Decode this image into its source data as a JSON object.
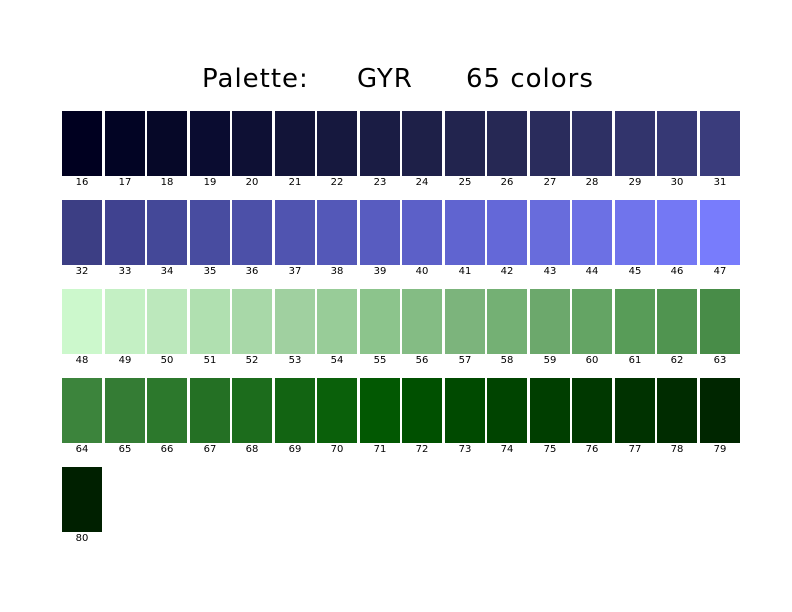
{
  "title": {
    "label": "Palette:",
    "name": "GYR",
    "count": "65 colors"
  },
  "palette": [
    {
      "index": "16",
      "color": "#000020"
    },
    {
      "index": "17",
      "color": "#020424"
    },
    {
      "index": "18",
      "color": "#060828"
    },
    {
      "index": "19",
      "color": "#0a0c30"
    },
    {
      "index": "20",
      "color": "#0e1034"
    },
    {
      "index": "21",
      "color": "#121438"
    },
    {
      "index": "22",
      "color": "#16183e"
    },
    {
      "index": "23",
      "color": "#1a1c44"
    },
    {
      "index": "24",
      "color": "#1e2048"
    },
    {
      "index": "25",
      "color": "#22244e"
    },
    {
      "index": "26",
      "color": "#262854"
    },
    {
      "index": "27",
      "color": "#2a2c5c"
    },
    {
      "index": "28",
      "color": "#2e3064"
    },
    {
      "index": "29",
      "color": "#32346c"
    },
    {
      "index": "30",
      "color": "#363874"
    },
    {
      "index": "31",
      "color": "#3a3c7c"
    },
    {
      "index": "32",
      "color": "#3c3e84"
    },
    {
      "index": "33",
      "color": "#404290"
    },
    {
      "index": "34",
      "color": "#444898"
    },
    {
      "index": "35",
      "color": "#484ca0"
    },
    {
      "index": "36",
      "color": "#4c50a8"
    },
    {
      "index": "37",
      "color": "#5054b0"
    },
    {
      "index": "38",
      "color": "#5458b8"
    },
    {
      "index": "39",
      "color": "#585cc0"
    },
    {
      "index": "40",
      "color": "#5c60c8"
    },
    {
      "index": "41",
      "color": "#6064d0"
    },
    {
      "index": "42",
      "color": "#6468d8"
    },
    {
      "index": "43",
      "color": "#686cdc"
    },
    {
      "index": "44",
      "color": "#6c70e4"
    },
    {
      "index": "45",
      "color": "#7074ec"
    },
    {
      "index": "46",
      "color": "#7478f4"
    },
    {
      "index": "47",
      "color": "#787cfc"
    },
    {
      "index": "48",
      "color": "#ccf8cc"
    },
    {
      "index": "49",
      "color": "#c4f0c4"
    },
    {
      "index": "50",
      "color": "#bce8bc"
    },
    {
      "index": "51",
      "color": "#b0e0b0"
    },
    {
      "index": "52",
      "color": "#a8d8a8"
    },
    {
      "index": "53",
      "color": "#a0d0a0"
    },
    {
      "index": "54",
      "color": "#98cc98"
    },
    {
      "index": "55",
      "color": "#8cc48c"
    },
    {
      "index": "56",
      "color": "#84bc84"
    },
    {
      "index": "57",
      "color": "#7cb47c"
    },
    {
      "index": "58",
      "color": "#74b074"
    },
    {
      "index": "59",
      "color": "#6ca86c"
    },
    {
      "index": "60",
      "color": "#64a464"
    },
    {
      "index": "61",
      "color": "#589c58"
    },
    {
      "index": "62",
      "color": "#509450"
    },
    {
      "index": "63",
      "color": "#488c48"
    },
    {
      "index": "64",
      "color": "#3c843c"
    },
    {
      "index": "65",
      "color": "#347c34"
    },
    {
      "index": "66",
      "color": "#2c782c"
    },
    {
      "index": "67",
      "color": "#247024"
    },
    {
      "index": "68",
      "color": "#1c6c1c"
    },
    {
      "index": "69",
      "color": "#126412"
    },
    {
      "index": "70",
      "color": "#0a600a"
    },
    {
      "index": "71",
      "color": "#025802"
    },
    {
      "index": "72",
      "color": "#005000"
    },
    {
      "index": "73",
      "color": "#004a00"
    },
    {
      "index": "74",
      "color": "#004400"
    },
    {
      "index": "75",
      "color": "#003e00"
    },
    {
      "index": "76",
      "color": "#003800"
    },
    {
      "index": "77",
      "color": "#003200"
    },
    {
      "index": "78",
      "color": "#002c00"
    },
    {
      "index": "79",
      "color": "#002600"
    },
    {
      "index": "80",
      "color": "#002000"
    }
  ]
}
